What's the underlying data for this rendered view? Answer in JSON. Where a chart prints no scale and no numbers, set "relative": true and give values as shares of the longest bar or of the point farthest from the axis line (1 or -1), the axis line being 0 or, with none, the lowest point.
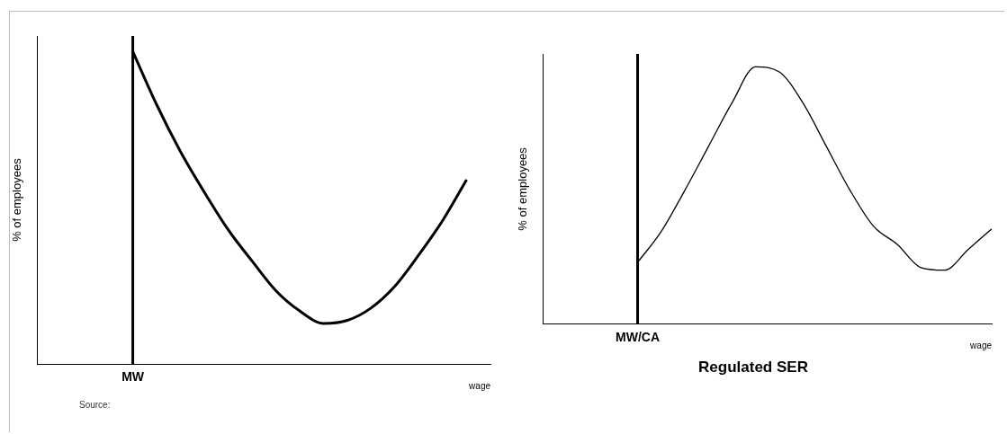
{
  "chart_data": [
    {
      "type": "line",
      "relative": true,
      "ylabel": "% of employees",
      "xlabel": "wage",
      "annotations": [
        "Source:"
      ],
      "categories": [
        null,
        null,
        null,
        null,
        null,
        null,
        null,
        null,
        null,
        null,
        null,
        null,
        null,
        null,
        null,
        null,
        null,
        null,
        null,
        null
      ],
      "series": [
        {
          "color": "#000000",
          "values": [
            null,
            null,
            null,
            null,
            1.0,
            0.83,
            0.68,
            0.55,
            0.43,
            0.33,
            0.235,
            0.17,
            0.13,
            0.14,
            0.18,
            0.25,
            0.35,
            0.46,
            0.59,
            null
          ]
        }
      ],
      "ref_lines": [
        {
          "axis": "x",
          "label": "MW",
          "color": "#000000"
        }
      ],
      "grid": false,
      "legend": false,
      "marker": "none",
      "line_style": "solid"
    },
    {
      "type": "line",
      "relative": true,
      "title": "Regulated SER",
      "ylabel": "% of employees",
      "xlabel": "wage",
      "categories": [
        null,
        null,
        null,
        null,
        null,
        null,
        null,
        null,
        null,
        null,
        null,
        null,
        null,
        null,
        null,
        null,
        null,
        null,
        null,
        null
      ],
      "series": [
        {
          "color": "#000000",
          "values": [
            null,
            null,
            null,
            null,
            0.24,
            0.36,
            0.52,
            0.69,
            0.86,
            1.0,
            0.98,
            0.86,
            0.69,
            0.52,
            0.38,
            0.31,
            0.22,
            0.21,
            0.29,
            0.37
          ]
        }
      ],
      "ref_lines": [
        {
          "axis": "x",
          "label": "MW/CA",
          "color": "#000000"
        }
      ],
      "grid": false,
      "legend": false,
      "marker": "none",
      "line_style": "solid"
    }
  ]
}
